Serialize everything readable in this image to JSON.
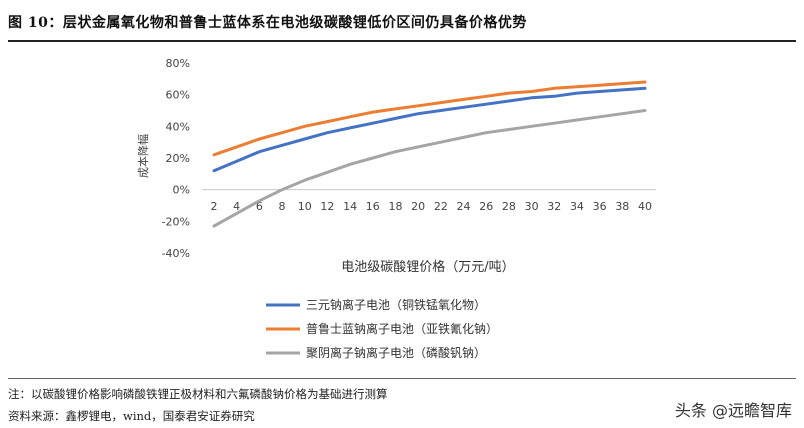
{
  "header": {
    "title": "图 10：层状金属氧化物和普鲁士蓝体系在电池级碳酸锂低价区间仍具备价格优势"
  },
  "footer": {
    "note": "注：以碳酸锂价格影响磷酸铁锂正极材料和六氟磷酸钠价格为基础进行测算",
    "source": "资料来源：鑫椤锂电，wind，国泰君安证券研究",
    "watermark": "头条 @远瞻智库"
  },
  "chart_data": {
    "type": "line",
    "xlabel": "电池级碳酸锂价格（万元/吨）",
    "ylabel": "成本降幅",
    "x": [
      2,
      4,
      6,
      8,
      10,
      12,
      14,
      16,
      18,
      20,
      22,
      24,
      26,
      28,
      30,
      32,
      34,
      36,
      38,
      40
    ],
    "ylim": [
      -40,
      80
    ],
    "yticks": [
      -40,
      -20,
      0,
      20,
      40,
      60,
      80
    ],
    "ytick_labels": [
      "-40%",
      "-20%",
      "0%",
      "20%",
      "40%",
      "60%",
      "80%"
    ],
    "grid": false,
    "legend_position": "bottom",
    "series": [
      {
        "name": "三元钠离子电池（铜铁锰氧化物）",
        "color": "#4472C4",
        "values": [
          12,
          18,
          24,
          28,
          32,
          36,
          39,
          42,
          45,
          48,
          50,
          52,
          54,
          56,
          58,
          59,
          61,
          62,
          63,
          64
        ]
      },
      {
        "name": "普鲁士蓝钠离子电池（亚铁氰化钠）",
        "color": "#ED7D31",
        "values": [
          22,
          27,
          32,
          36,
          40,
          43,
          46,
          49,
          51,
          53,
          55,
          57,
          59,
          61,
          62,
          64,
          65,
          66,
          67,
          68
        ]
      },
      {
        "name": "聚阴离子钠离子电池（磷酸钒钠）",
        "color": "#A5A5A5",
        "values": [
          -23,
          -15,
          -7,
          0,
          6,
          11,
          16,
          20,
          24,
          27,
          30,
          33,
          36,
          38,
          40,
          42,
          44,
          46,
          48,
          50
        ]
      }
    ]
  }
}
